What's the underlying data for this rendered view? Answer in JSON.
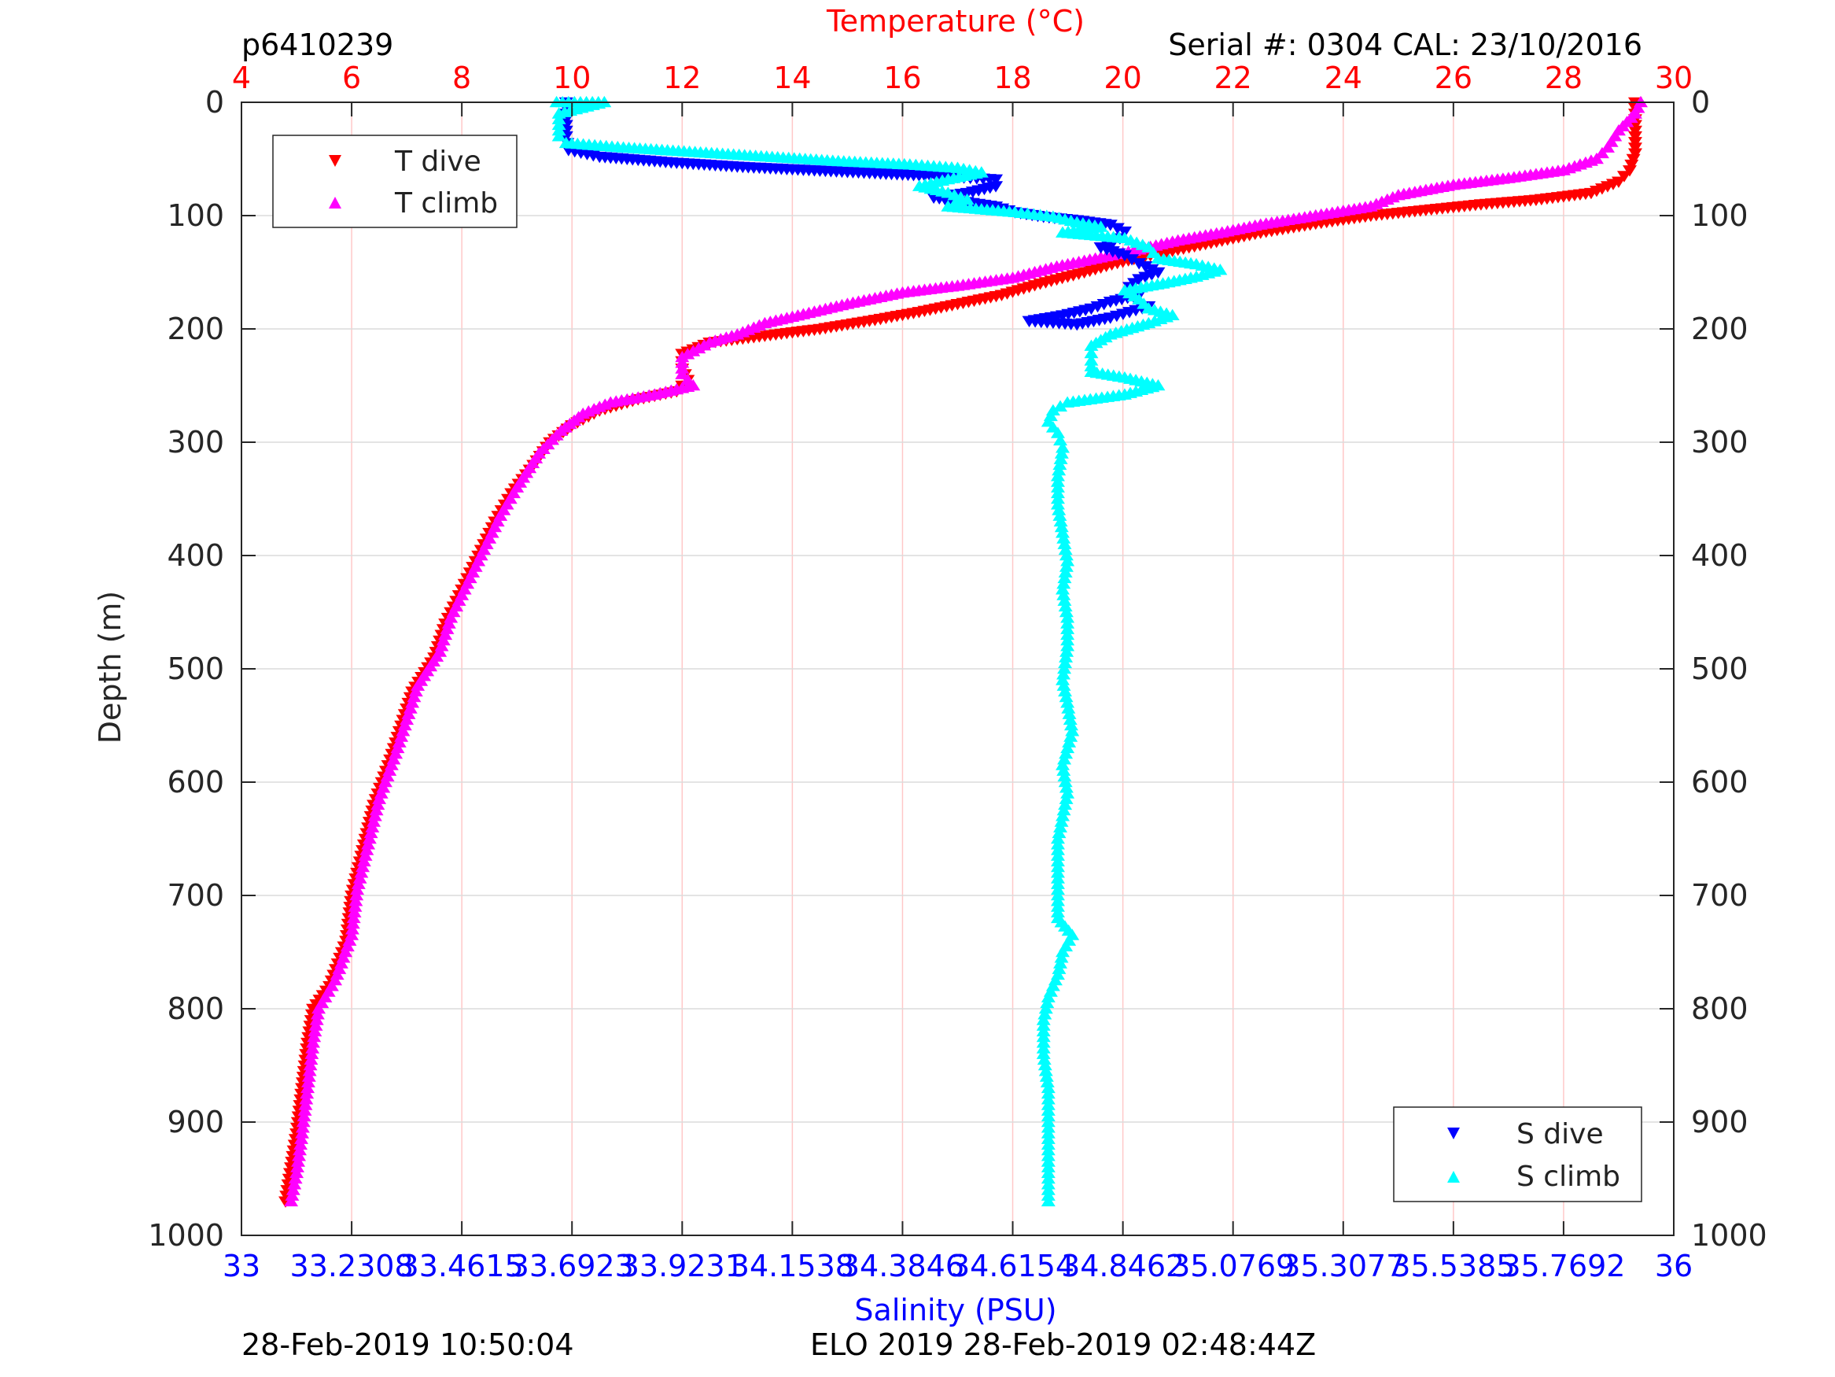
{
  "header": {
    "profile_id": "p6410239",
    "serial": "Serial #: 0304  CAL: 23/10/2016"
  },
  "footer": {
    "left": "28-Feb-2019 10:50:04",
    "center": "ELO 2019 28-Feb-2019 02:48:44Z"
  },
  "colors": {
    "temp_axis": "#ff0000",
    "sal_axis": "#0000ff",
    "t_dive": "#ff0000",
    "t_climb": "#ff00ff",
    "s_dive": "#0000ff",
    "s_climb": "#00ffff",
    "grid_v": "#ffc8c8",
    "grid_h": "#dcdcdc"
  },
  "chart_data": {
    "type": "scatter",
    "ylabel": "Depth (m)",
    "ylim": [
      0,
      1000
    ],
    "y_reversed": true,
    "y_ticks": [
      "0",
      "100",
      "200",
      "300",
      "400",
      "500",
      "600",
      "700",
      "800",
      "900",
      "1000"
    ],
    "temperature_axis": {
      "label": "Temperature (°C)",
      "position": "top",
      "xlim": [
        4,
        30
      ],
      "ticks": [
        "4",
        "6",
        "8",
        "10",
        "12",
        "14",
        "16",
        "18",
        "20",
        "22",
        "24",
        "26",
        "28",
        "30"
      ]
    },
    "salinity_axis": {
      "label": "Salinity (PSU)",
      "position": "bottom",
      "xlim": [
        33,
        36
      ],
      "ticks": [
        "33",
        "33.2308",
        "33.4615",
        "33.6923",
        "33.9231",
        "34.1538",
        "34.3846",
        "34.6154",
        "34.8462",
        "35.0769",
        "35.3077",
        "35.5385",
        "35.7692",
        "36"
      ]
    },
    "grid": true,
    "legends": [
      {
        "placement": "top-left",
        "entries": [
          "T dive",
          "T climb"
        ]
      },
      {
        "placement": "bottom-right",
        "entries": [
          "S dive",
          "S climb"
        ]
      }
    ],
    "series": [
      {
        "name": "T dive",
        "axis": "temperature",
        "marker": "triangle-down",
        "points": [
          [
            29.3,
            0
          ],
          [
            29.3,
            15
          ],
          [
            29.3,
            30
          ],
          [
            29.3,
            45
          ],
          [
            29.2,
            60
          ],
          [
            29.0,
            70
          ],
          [
            28.5,
            80
          ],
          [
            27.5,
            86
          ],
          [
            26.5,
            90
          ],
          [
            25.5,
            95
          ],
          [
            24.5,
            100
          ],
          [
            23.5,
            107
          ],
          [
            22.5,
            115
          ],
          [
            21.8,
            122
          ],
          [
            21.0,
            130
          ],
          [
            20.3,
            137
          ],
          [
            19.8,
            143
          ],
          [
            19.3,
            150
          ],
          [
            18.5,
            160
          ],
          [
            17.8,
            170
          ],
          [
            17.0,
            178
          ],
          [
            16.3,
            185
          ],
          [
            15.5,
            192
          ],
          [
            14.5,
            200
          ],
          [
            13.5,
            206
          ],
          [
            12.5,
            212
          ],
          [
            12.0,
            222
          ],
          [
            12.0,
            235
          ],
          [
            12.1,
            245
          ],
          [
            11.9,
            255
          ],
          [
            11.2,
            262
          ],
          [
            10.5,
            272
          ],
          [
            10.0,
            285
          ],
          [
            9.6,
            300
          ],
          [
            9.3,
            320
          ],
          [
            8.9,
            345
          ],
          [
            8.6,
            370
          ],
          [
            8.3,
            400
          ],
          [
            8.0,
            430
          ],
          [
            7.7,
            460
          ],
          [
            7.5,
            490
          ],
          [
            7.1,
            520
          ],
          [
            6.9,
            550
          ],
          [
            6.7,
            580
          ],
          [
            6.4,
            620
          ],
          [
            6.2,
            660
          ],
          [
            6.0,
            700
          ],
          [
            5.9,
            740
          ],
          [
            5.6,
            780
          ],
          [
            5.3,
            800
          ],
          [
            5.2,
            830
          ],
          [
            5.1,
            870
          ],
          [
            5.0,
            910
          ],
          [
            4.9,
            940
          ],
          [
            4.8,
            970
          ]
        ]
      },
      {
        "name": "T climb",
        "axis": "temperature",
        "marker": "triangle-up",
        "points": [
          [
            29.4,
            0
          ],
          [
            29.3,
            10
          ],
          [
            29.0,
            25
          ],
          [
            28.8,
            40
          ],
          [
            28.6,
            50
          ],
          [
            28.0,
            60
          ],
          [
            27.0,
            67
          ],
          [
            26.0,
            73
          ],
          [
            25.0,
            82
          ],
          [
            24.5,
            92
          ],
          [
            23.5,
            100
          ],
          [
            22.5,
            108
          ],
          [
            21.8,
            115
          ],
          [
            21.0,
            122
          ],
          [
            20.3,
            130
          ],
          [
            19.5,
            138
          ],
          [
            18.8,
            145
          ],
          [
            18.0,
            155
          ],
          [
            17.0,
            162
          ],
          [
            16.0,
            168
          ],
          [
            15.0,
            178
          ],
          [
            14.3,
            186
          ],
          [
            13.5,
            195
          ],
          [
            13.0,
            205
          ],
          [
            12.5,
            212
          ],
          [
            12.0,
            225
          ],
          [
            12.0,
            240
          ],
          [
            12.2,
            250
          ],
          [
            11.5,
            258
          ],
          [
            10.7,
            265
          ],
          [
            10.2,
            275
          ],
          [
            9.8,
            290
          ],
          [
            9.4,
            310
          ],
          [
            9.0,
            340
          ],
          [
            8.7,
            365
          ],
          [
            8.4,
            395
          ],
          [
            8.1,
            425
          ],
          [
            7.8,
            455
          ],
          [
            7.6,
            485
          ],
          [
            7.2,
            515
          ],
          [
            7.0,
            545
          ],
          [
            6.8,
            575
          ],
          [
            6.5,
            615
          ],
          [
            6.3,
            655
          ],
          [
            6.1,
            695
          ],
          [
            6.0,
            735
          ],
          [
            5.7,
            775
          ],
          [
            5.4,
            800
          ],
          [
            5.3,
            830
          ],
          [
            5.2,
            870
          ],
          [
            5.1,
            910
          ],
          [
            5.0,
            945
          ],
          [
            4.9,
            970
          ]
        ]
      },
      {
        "name": "S dive",
        "axis": "salinity",
        "marker": "triangle-down",
        "points": [
          [
            33.68,
            0
          ],
          [
            33.68,
            15
          ],
          [
            33.68,
            30
          ],
          [
            33.685,
            42
          ],
          [
            33.75,
            48
          ],
          [
            33.9,
            53
          ],
          [
            34.05,
            57
          ],
          [
            34.2,
            60
          ],
          [
            34.35,
            63
          ],
          [
            34.5,
            66
          ],
          [
            34.58,
            68
          ],
          [
            34.58,
            74
          ],
          [
            34.52,
            80
          ],
          [
            34.45,
            84
          ],
          [
            34.52,
            88
          ],
          [
            34.58,
            92
          ],
          [
            34.62,
            97
          ],
          [
            34.68,
            101
          ],
          [
            34.75,
            104
          ],
          [
            34.82,
            108
          ],
          [
            34.85,
            114
          ],
          [
            34.84,
            120
          ],
          [
            34.8,
            128
          ],
          [
            34.85,
            135
          ],
          [
            34.88,
            142
          ],
          [
            34.92,
            150
          ],
          [
            34.88,
            156
          ],
          [
            34.86,
            163
          ],
          [
            34.88,
            170
          ],
          [
            34.82,
            176
          ],
          [
            34.78,
            182
          ],
          [
            34.72,
            188
          ],
          [
            34.65,
            193
          ],
          [
            34.75,
            196
          ],
          [
            34.82,
            190
          ],
          [
            34.86,
            185
          ],
          [
            34.9,
            180
          ]
        ]
      },
      {
        "name": "S climb",
        "axis": "salinity",
        "marker": "triangle-up",
        "points": [
          [
            33.66,
            0
          ],
          [
            33.76,
            0
          ],
          [
            33.665,
            10
          ],
          [
            33.665,
            20
          ],
          [
            33.665,
            30
          ],
          [
            33.68,
            36
          ],
          [
            33.8,
            40
          ],
          [
            33.95,
            44
          ],
          [
            34.1,
            48
          ],
          [
            34.25,
            52
          ],
          [
            34.4,
            55
          ],
          [
            34.5,
            58
          ],
          [
            34.55,
            62
          ],
          [
            34.48,
            68
          ],
          [
            34.42,
            74
          ],
          [
            34.48,
            80
          ],
          [
            34.52,
            86
          ],
          [
            34.48,
            92
          ],
          [
            34.62,
            97
          ],
          [
            34.7,
            101
          ],
          [
            34.75,
            106
          ],
          [
            34.8,
            110
          ],
          [
            34.72,
            115
          ],
          [
            34.85,
            120
          ],
          [
            34.9,
            128
          ],
          [
            34.92,
            138
          ],
          [
            35.0,
            143
          ],
          [
            35.05,
            148
          ],
          [
            35.0,
            154
          ],
          [
            34.93,
            160
          ],
          [
            34.85,
            166
          ],
          [
            34.88,
            174
          ],
          [
            34.9,
            182
          ],
          [
            34.95,
            188
          ],
          [
            34.9,
            195
          ],
          [
            34.82,
            205
          ],
          [
            34.78,
            215
          ],
          [
            34.78,
            228
          ],
          [
            34.78,
            238
          ],
          [
            34.85,
            243
          ],
          [
            34.92,
            250
          ],
          [
            34.85,
            258
          ],
          [
            34.73,
            265
          ],
          [
            34.7,
            272
          ],
          [
            34.69,
            282
          ],
          [
            34.71,
            292
          ],
          [
            34.72,
            305
          ],
          [
            34.71,
            330
          ],
          [
            34.71,
            355
          ],
          [
            34.72,
            380
          ],
          [
            34.73,
            405
          ],
          [
            34.72,
            430
          ],
          [
            34.73,
            455
          ],
          [
            34.73,
            480
          ],
          [
            34.72,
            510
          ],
          [
            34.73,
            530
          ],
          [
            34.74,
            555
          ],
          [
            34.72,
            585
          ],
          [
            34.73,
            610
          ],
          [
            34.72,
            630
          ],
          [
            34.71,
            650
          ],
          [
            34.71,
            675
          ],
          [
            34.71,
            700
          ],
          [
            34.71,
            720
          ],
          [
            34.74,
            735
          ],
          [
            34.72,
            750
          ],
          [
            34.71,
            770
          ],
          [
            34.69,
            790
          ],
          [
            34.68,
            810
          ],
          [
            34.68,
            840
          ],
          [
            34.69,
            870
          ],
          [
            34.69,
            900
          ],
          [
            34.69,
            930
          ],
          [
            34.69,
            955
          ],
          [
            34.69,
            970
          ]
        ]
      }
    ]
  }
}
